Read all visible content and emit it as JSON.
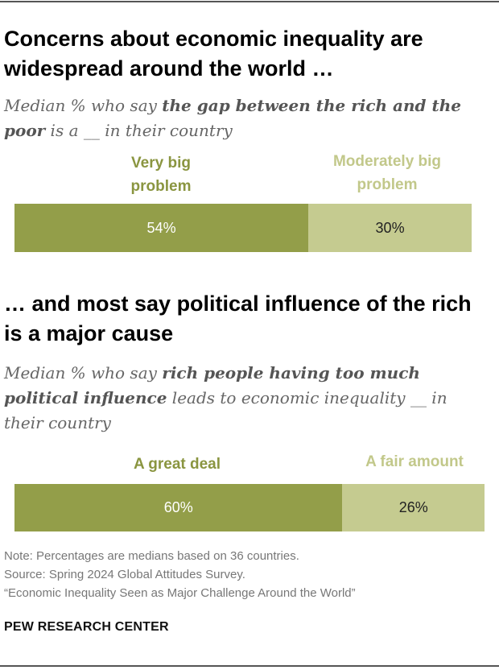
{
  "colors": {
    "very_big": "#939e49",
    "moderately_big": "#c5cb90",
    "very_big_label": "#8a9540",
    "moderately_big_label": "#c2c88a",
    "rule": "#555555"
  },
  "chart_data": [
    {
      "type": "bar",
      "orientation": "horizontal-stacked",
      "title": "Concerns about economic inequality are widespread around the world …",
      "subtitle_parts": [
        {
          "text": "Median % who say ",
          "bold": false
        },
        {
          "text": "the gap between the rich and the poor",
          "bold": true
        },
        {
          "text": " is a __ in their country",
          "bold": false
        }
      ],
      "series": [
        {
          "name": "Very big problem",
          "values": [
            54
          ],
          "label": "54%"
        },
        {
          "name": "Moderately big problem",
          "values": [
            30
          ],
          "label": "30%"
        }
      ],
      "xlim": [
        0,
        84
      ]
    },
    {
      "type": "bar",
      "orientation": "horizontal-stacked",
      "title": "… and most say political influence of the rich is a major cause",
      "subtitle_parts": [
        {
          "text": "Median % who say ",
          "bold": false
        },
        {
          "text": "rich people having too much political influence",
          "bold": true
        },
        {
          "text": " leads to economic inequality __ in their country",
          "bold": false
        }
      ],
      "series": [
        {
          "name": "A great deal",
          "values": [
            60
          ],
          "label": "60%"
        },
        {
          "name": "A fair amount",
          "values": [
            26
          ],
          "label": "26%"
        }
      ],
      "xlim": [
        0,
        86
      ]
    }
  ],
  "notes": [
    "Note: Percentages are medians based on 36 countries.",
    "Source: Spring 2024 Global Attitudes Survey.",
    "“Economic Inequality Seen as Major Challenge Around the World”"
  ],
  "brand": "PEW RESEARCH CENTER"
}
